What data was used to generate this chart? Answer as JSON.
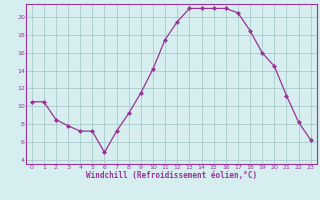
{
  "x": [
    0,
    1,
    2,
    3,
    4,
    5,
    6,
    7,
    8,
    9,
    10,
    11,
    12,
    13,
    14,
    15,
    16,
    17,
    18,
    19,
    20,
    21,
    22,
    23
  ],
  "y": [
    10.5,
    10.5,
    8.5,
    7.8,
    7.2,
    7.2,
    4.8,
    7.2,
    9.2,
    11.5,
    14.2,
    17.5,
    19.5,
    21.0,
    21.0,
    21.0,
    21.0,
    20.5,
    18.5,
    16.0,
    14.5,
    11.2,
    8.2,
    6.2
  ],
  "line_color": "#993399",
  "marker": "D",
  "marker_size": 2,
  "bg_color": "#d6eef0",
  "grid_color": "#aacccc",
  "xlabel": "Windchill (Refroidissement éolien,°C)",
  "xlabel_color": "#993399",
  "tick_color": "#993399",
  "ylim": [
    3.5,
    21.5
  ],
  "yticks": [
    4,
    6,
    8,
    10,
    12,
    14,
    16,
    18,
    20
  ],
  "xlim": [
    -0.5,
    23.5
  ],
  "xticks": [
    0,
    1,
    2,
    3,
    4,
    5,
    6,
    7,
    8,
    9,
    10,
    11,
    12,
    13,
    14,
    15,
    16,
    17,
    18,
    19,
    20,
    21,
    22,
    23
  ],
  "spine_color": "#993399",
  "line_width": 0.9
}
